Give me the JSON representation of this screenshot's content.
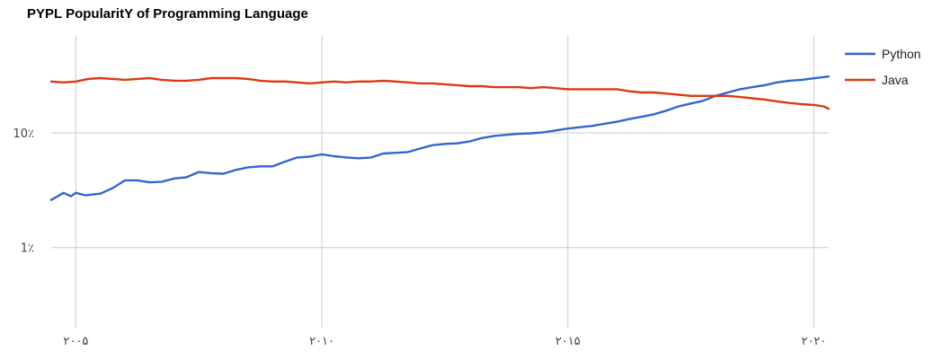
{
  "chart_data": {
    "type": "line",
    "title": "PYPL PopularitY of Programming Language",
    "xlabel": "",
    "ylabel": "",
    "y_scale": "log",
    "ylim": [
      0.2,
      70
    ],
    "xlim": [
      2004.5,
      2020.3
    ],
    "grid": true,
    "legend_position": "right",
    "x_ticks": [
      {
        "value": 2005,
        "label": "۲۰۰۵"
      },
      {
        "value": 2010,
        "label": "۲۰۱۰"
      },
      {
        "value": 2015,
        "label": "۲۰۱۵"
      },
      {
        "value": 2020,
        "label": "۲۰۲۰"
      }
    ],
    "y_ticks": [
      {
        "value": 1,
        "label": "1٪"
      },
      {
        "value": 10,
        "label": "10٪"
      }
    ],
    "series": [
      {
        "name": "Python",
        "color": "#3366cc",
        "points": [
          [
            2004.5,
            2.6
          ],
          [
            2004.75,
            3.0
          ],
          [
            2004.9,
            2.8
          ],
          [
            2005.0,
            3.0
          ],
          [
            2005.2,
            2.85
          ],
          [
            2005.5,
            2.95
          ],
          [
            2005.75,
            3.3
          ],
          [
            2006.0,
            3.85
          ],
          [
            2006.25,
            3.85
          ],
          [
            2006.5,
            3.7
          ],
          [
            2006.75,
            3.75
          ],
          [
            2007.0,
            4.0
          ],
          [
            2007.25,
            4.1
          ],
          [
            2007.5,
            4.55
          ],
          [
            2007.75,
            4.45
          ],
          [
            2008.0,
            4.4
          ],
          [
            2008.25,
            4.75
          ],
          [
            2008.5,
            5.0
          ],
          [
            2008.75,
            5.1
          ],
          [
            2009.0,
            5.1
          ],
          [
            2009.25,
            5.6
          ],
          [
            2009.5,
            6.1
          ],
          [
            2009.75,
            6.2
          ],
          [
            2010.0,
            6.5
          ],
          [
            2010.25,
            6.25
          ],
          [
            2010.5,
            6.1
          ],
          [
            2010.75,
            6.0
          ],
          [
            2011.0,
            6.1
          ],
          [
            2011.25,
            6.6
          ],
          [
            2011.5,
            6.7
          ],
          [
            2011.75,
            6.8
          ],
          [
            2012.0,
            7.3
          ],
          [
            2012.25,
            7.8
          ],
          [
            2012.5,
            8.0
          ],
          [
            2012.75,
            8.1
          ],
          [
            2013.0,
            8.4
          ],
          [
            2013.25,
            9.0
          ],
          [
            2013.5,
            9.4
          ],
          [
            2013.75,
            9.6
          ],
          [
            2014.0,
            9.8
          ],
          [
            2014.25,
            9.9
          ],
          [
            2014.5,
            10.1
          ],
          [
            2014.75,
            10.5
          ],
          [
            2015.0,
            10.9
          ],
          [
            2015.25,
            11.2
          ],
          [
            2015.5,
            11.5
          ],
          [
            2015.75,
            12.0
          ],
          [
            2016.0,
            12.5
          ],
          [
            2016.25,
            13.2
          ],
          [
            2016.5,
            13.8
          ],
          [
            2016.75,
            14.5
          ],
          [
            2017.0,
            15.6
          ],
          [
            2017.25,
            17.0
          ],
          [
            2017.5,
            18.0
          ],
          [
            2017.75,
            19.0
          ],
          [
            2018.0,
            21.0
          ],
          [
            2018.25,
            22.5
          ],
          [
            2018.5,
            24.0
          ],
          [
            2018.75,
            25.0
          ],
          [
            2019.0,
            26.0
          ],
          [
            2019.25,
            27.5
          ],
          [
            2019.5,
            28.5
          ],
          [
            2019.75,
            29.0
          ],
          [
            2020.0,
            29.9
          ],
          [
            2020.3,
            31.0
          ]
        ]
      },
      {
        "name": "Java",
        "color": "#dc3912",
        "points": [
          [
            2004.5,
            28.0
          ],
          [
            2004.75,
            27.5
          ],
          [
            2005.0,
            28.0
          ],
          [
            2005.25,
            29.5
          ],
          [
            2005.5,
            30.0
          ],
          [
            2005.75,
            29.5
          ],
          [
            2006.0,
            29.0
          ],
          [
            2006.25,
            29.5
          ],
          [
            2006.5,
            30.0
          ],
          [
            2006.75,
            29.0
          ],
          [
            2007.0,
            28.5
          ],
          [
            2007.25,
            28.5
          ],
          [
            2007.5,
            29.0
          ],
          [
            2007.75,
            30.0
          ],
          [
            2008.0,
            30.0
          ],
          [
            2008.25,
            30.0
          ],
          [
            2008.5,
            29.5
          ],
          [
            2008.75,
            28.5
          ],
          [
            2009.0,
            28.0
          ],
          [
            2009.25,
            28.0
          ],
          [
            2009.5,
            27.5
          ],
          [
            2009.75,
            27.0
          ],
          [
            2010.0,
            27.5
          ],
          [
            2010.25,
            28.0
          ],
          [
            2010.5,
            27.5
          ],
          [
            2010.75,
            28.0
          ],
          [
            2011.0,
            28.0
          ],
          [
            2011.25,
            28.5
          ],
          [
            2011.5,
            28.0
          ],
          [
            2011.75,
            27.5
          ],
          [
            2012.0,
            27.0
          ],
          [
            2012.25,
            27.0
          ],
          [
            2012.5,
            26.5
          ],
          [
            2012.75,
            26.0
          ],
          [
            2013.0,
            25.5
          ],
          [
            2013.25,
            25.5
          ],
          [
            2013.5,
            25.0
          ],
          [
            2013.75,
            25.0
          ],
          [
            2014.0,
            25.0
          ],
          [
            2014.25,
            24.5
          ],
          [
            2014.5,
            25.0
          ],
          [
            2014.75,
            24.5
          ],
          [
            2015.0,
            24.0
          ],
          [
            2015.25,
            24.0
          ],
          [
            2015.5,
            24.0
          ],
          [
            2015.75,
            24.0
          ],
          [
            2016.0,
            24.0
          ],
          [
            2016.25,
            23.0
          ],
          [
            2016.5,
            22.5
          ],
          [
            2016.75,
            22.5
          ],
          [
            2017.0,
            22.0
          ],
          [
            2017.25,
            21.5
          ],
          [
            2017.5,
            21.0
          ],
          [
            2017.75,
            21.0
          ],
          [
            2018.0,
            21.0
          ],
          [
            2018.25,
            21.0
          ],
          [
            2018.5,
            20.5
          ],
          [
            2018.75,
            20.0
          ],
          [
            2019.0,
            19.5
          ],
          [
            2019.25,
            18.8
          ],
          [
            2019.5,
            18.2
          ],
          [
            2019.75,
            17.8
          ],
          [
            2020.0,
            17.5
          ],
          [
            2020.2,
            17.0
          ],
          [
            2020.3,
            16.2
          ]
        ]
      }
    ]
  }
}
